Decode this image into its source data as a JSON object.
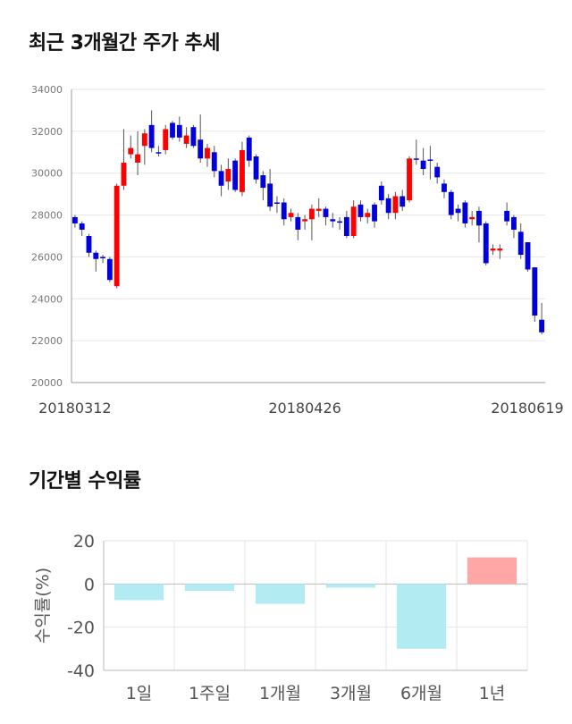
{
  "page": {
    "title_price": "최근 3개월간 주가 추세",
    "title_returns": "기간별 수익률"
  },
  "colors": {
    "up": "#ff0000",
    "down": "#0000dd",
    "wick": "#555555",
    "grid": "#e6e6e6",
    "bar_negative": "#b2ebf2",
    "bar_positive": "#ffa6a6"
  },
  "chart_data": [
    {
      "type": "candlestick",
      "title": "최근 3개월간 주가 추세",
      "ylim": [
        20000,
        34000
      ],
      "yticks": [
        "20000",
        "22000",
        "24000",
        "26000",
        "28000",
        "30000",
        "32000",
        "34000"
      ],
      "x_tick_labels": [
        {
          "index": 0,
          "label": "20180312"
        },
        {
          "index": 33,
          "label": "20180426"
        },
        {
          "index": 67,
          "label": "20180619"
        }
      ],
      "grid": "horizontal",
      "candles": [
        [
          27900,
          27600,
          28000,
          27400
        ],
        [
          27600,
          27300,
          27700,
          27000
        ],
        [
          27000,
          26200,
          27100,
          26000
        ],
        [
          26200,
          25900,
          26300,
          25300
        ],
        [
          26000,
          25950,
          26100,
          25700
        ],
        [
          25900,
          24900,
          26000,
          24800
        ],
        [
          24600,
          29400,
          29500,
          24500
        ],
        [
          29400,
          30500,
          32100,
          29200
        ],
        [
          30900,
          31200,
          31800,
          30700
        ],
        [
          30500,
          30900,
          32000,
          29900
        ],
        [
          31300,
          31900,
          32100,
          30400
        ],
        [
          32300,
          31200,
          33000,
          31000
        ],
        [
          31000,
          30950,
          31300,
          30800
        ],
        [
          31100,
          32100,
          32300,
          30900
        ],
        [
          32400,
          31700,
          32500,
          31600
        ],
        [
          32300,
          31700,
          32700,
          31500
        ],
        [
          31400,
          31800,
          32200,
          31200
        ],
        [
          32200,
          31300,
          32300,
          31200
        ],
        [
          31600,
          30700,
          32800,
          30500
        ],
        [
          30700,
          31200,
          31400,
          30300
        ],
        [
          31000,
          30100,
          31300,
          29800
        ],
        [
          30100,
          29400,
          30400,
          28900
        ],
        [
          29600,
          30200,
          30700,
          29200
        ],
        [
          30600,
          29200,
          30700,
          29100
        ],
        [
          29100,
          31100,
          31500,
          28900
        ],
        [
          31700,
          30600,
          31800,
          30300
        ],
        [
          30800,
          29700,
          30900,
          29500
        ],
        [
          29900,
          29300,
          30100,
          28700
        ],
        [
          29500,
          28400,
          30200,
          28200
        ],
        [
          28600,
          28550,
          28900,
          28100
        ],
        [
          28600,
          27800,
          28800,
          27500
        ],
        [
          27900,
          28100,
          28300,
          27700
        ],
        [
          27900,
          27300,
          28100,
          26800
        ],
        [
          27700,
          27800,
          28000,
          27300
        ],
        [
          27800,
          28300,
          28500,
          26800
        ],
        [
          28200,
          28300,
          28800,
          27900
        ],
        [
          28300,
          27900,
          28400,
          27500
        ],
        [
          27800,
          27700,
          28100,
          27400
        ],
        [
          27700,
          27650,
          27900,
          27300
        ],
        [
          27900,
          27000,
          28200,
          26900
        ],
        [
          27000,
          28400,
          28700,
          26900
        ],
        [
          28500,
          27900,
          28700,
          27700
        ],
        [
          27900,
          28100,
          28300,
          27600
        ],
        [
          28500,
          27700,
          28600,
          27400
        ],
        [
          29400,
          28700,
          29600,
          28500
        ],
        [
          28800,
          28100,
          29000,
          27800
        ],
        [
          28100,
          28900,
          29100,
          27800
        ],
        [
          28900,
          28400,
          29200,
          28200
        ],
        [
          28700,
          30700,
          30800,
          28600
        ],
        [
          30700,
          30650,
          31600,
          30400
        ],
        [
          30600,
          30200,
          31200,
          29900
        ],
        [
          30650,
          30600,
          31300,
          29700
        ],
        [
          30300,
          29800,
          30500,
          29500
        ],
        [
          29500,
          29100,
          29700,
          28800
        ],
        [
          29100,
          28000,
          29200,
          27800
        ],
        [
          28300,
          28100,
          28500,
          27700
        ],
        [
          28600,
          27600,
          28700,
          27400
        ],
        [
          27800,
          27900,
          28200,
          27500
        ],
        [
          28200,
          27500,
          28400,
          26700
        ],
        [
          27600,
          25700,
          27700,
          25600
        ],
        [
          26300,
          26400,
          26600,
          26100
        ],
        [
          26300,
          26400,
          26600,
          25900
        ],
        [
          28200,
          27700,
          28600,
          27500
        ],
        [
          27900,
          27300,
          28000,
          26900
        ],
        [
          27200,
          26100,
          27600,
          25900
        ],
        [
          26700,
          25400,
          26700,
          25300
        ],
        [
          25500,
          23200,
          25500,
          22900
        ],
        [
          23000,
          22400,
          23800,
          22300
        ]
      ]
    },
    {
      "type": "bar",
      "title": "기간별 수익률",
      "ylabel": "수익률(%)",
      "ylim": [
        -40,
        20
      ],
      "yticks": [
        "20",
        "0",
        "-20",
        "-40"
      ],
      "categories": [
        "1일",
        "1주일",
        "1개월",
        "3개월",
        "6개월",
        "1년"
      ],
      "values": [
        -7.5,
        -3.2,
        -9.2,
        -1.7,
        -30.0,
        12.3
      ]
    }
  ]
}
